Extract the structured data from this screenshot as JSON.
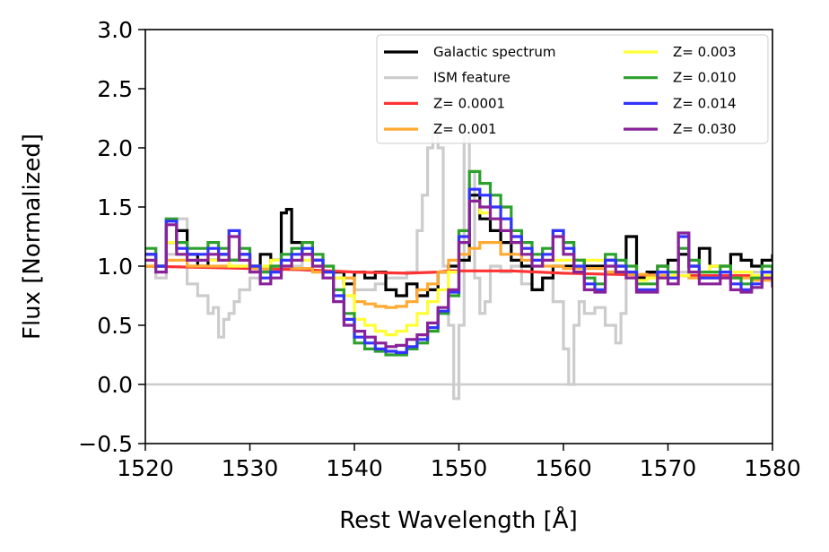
{
  "chart_data": {
    "type": "line",
    "xlabel": "Rest Wavelength [Å]",
    "ylabel": "Flux [Normalized]",
    "xlim": [
      1520,
      1580
    ],
    "ylim": [
      -0.5,
      3.0
    ],
    "xticks": [
      1520,
      1530,
      1540,
      1550,
      1560,
      1570,
      1580
    ],
    "xtick_labels": [
      "1520",
      "1530",
      "1540",
      "1550",
      "1560",
      "1570",
      "1580"
    ],
    "yticks": [
      -0.5,
      0.0,
      0.5,
      1.0,
      1.5,
      2.0,
      2.5,
      3.0
    ],
    "ytick_labels": [
      "−0.5",
      "0.0",
      "0.5",
      "1.0",
      "1.5",
      "2.0",
      "2.5",
      "3.0"
    ],
    "reference_line": {
      "y": 0.0,
      "color": "#cccccc"
    },
    "legend_position": "top-right",
    "series": [
      {
        "name": "ISM feature",
        "color": "#cccccc",
        "step": true,
        "legend_col": 0,
        "legend_row": 1,
        "x": [
          1520,
          1521,
          1522,
          1523,
          1524,
          1525,
          1526,
          1526.5,
          1527,
          1527.5,
          1528,
          1528.5,
          1529,
          1530,
          1531,
          1532,
          1533,
          1534,
          1535,
          1536,
          1537,
          1538,
          1539,
          1540,
          1541,
          1542,
          1543,
          1544,
          1545,
          1546,
          1546.5,
          1547,
          1547.5,
          1548,
          1548.5,
          1549,
          1549.5,
          1550,
          1550.5,
          1551,
          1551.5,
          1552,
          1552.5,
          1553,
          1554,
          1555,
          1556,
          1557,
          1558,
          1559,
          1560,
          1560.5,
          1561,
          1561.5,
          1562,
          1563,
          1564,
          1565,
          1565.5,
          1566,
          1567,
          1568,
          1570,
          1572,
          1574,
          1576,
          1578,
          1580
        ],
        "y": [
          1.0,
          0.9,
          1.1,
          1.4,
          0.85,
          0.75,
          0.6,
          0.65,
          0.4,
          0.55,
          0.6,
          0.7,
          0.8,
          0.9,
          1.0,
          1.05,
          1.0,
          1.0,
          1.05,
          1.0,
          1.0,
          0.9,
          0.85,
          0.8,
          0.8,
          0.85,
          0.9,
          0.9,
          0.95,
          1.3,
          1.6,
          2.0,
          2.2,
          2.0,
          1.0,
          0.5,
          -0.12,
          0.5,
          2.1,
          1.8,
          0.9,
          0.6,
          0.7,
          1.0,
          0.95,
          1.0,
          0.85,
          0.8,
          0.9,
          0.7,
          0.3,
          0.0,
          0.5,
          0.7,
          0.6,
          0.65,
          0.5,
          0.35,
          0.6,
          0.95,
          0.9,
          0.95,
          0.95,
          0.95,
          0.95,
          0.95,
          0.95,
          0.95
        ]
      },
      {
        "name": "Galactic spectrum",
        "color": "#000000",
        "step": true,
        "legend_col": 0,
        "legend_row": 0,
        "x": [
          1520,
          1521,
          1522,
          1523,
          1524,
          1525,
          1526,
          1527,
          1528,
          1529,
          1530,
          1531,
          1532,
          1533,
          1533.5,
          1534,
          1535,
          1536,
          1537,
          1538,
          1539,
          1540,
          1541,
          1542,
          1543,
          1544,
          1545,
          1546,
          1547,
          1548,
          1549,
          1550,
          1551,
          1552,
          1553,
          1554,
          1555,
          1556,
          1557,
          1558,
          1559,
          1560,
          1561,
          1562,
          1563,
          1564,
          1565,
          1566,
          1567,
          1568,
          1569,
          1570,
          1571,
          1572,
          1573,
          1574,
          1575,
          1576,
          1577,
          1578,
          1579,
          1580
        ],
        "y": [
          1.1,
          1.0,
          1.2,
          1.3,
          1.1,
          1.0,
          1.05,
          1.1,
          1.05,
          1.1,
          1.0,
          1.1,
          1.05,
          1.45,
          1.48,
          1.2,
          1.1,
          1.05,
          0.95,
          0.95,
          0.85,
          0.95,
          0.9,
          0.95,
          0.8,
          0.75,
          0.85,
          0.75,
          0.8,
          0.95,
          1.0,
          1.05,
          1.6,
          1.4,
          1.3,
          1.2,
          1.05,
          1.0,
          0.8,
          0.9,
          1.0,
          1.0,
          1.05,
          1.0,
          1.0,
          1.05,
          1.0,
          1.25,
          0.9,
          0.95,
          1.0,
          1.05,
          1.1,
          1.0,
          1.15,
          1.0,
          1.0,
          1.1,
          1.05,
          1.0,
          1.05,
          1.1
        ]
      },
      {
        "name": "Z= 0.0001",
        "color": "#ff3333",
        "step": false,
        "legend_col": 0,
        "legend_row": 2,
        "x": [
          1520,
          1525,
          1530,
          1535,
          1540,
          1545,
          1548,
          1549,
          1550,
          1555,
          1560,
          1565,
          1570,
          1575,
          1580
        ],
        "y": [
          1.0,
          0.99,
          0.98,
          0.97,
          0.95,
          0.94,
          0.95,
          0.96,
          0.96,
          0.96,
          0.94,
          0.93,
          0.92,
          0.92,
          0.92
        ]
      },
      {
        "name": "Z= 0.001",
        "color": "#ffaa33",
        "step": true,
        "legend_col": 0,
        "legend_row": 3,
        "x": [
          1520,
          1522,
          1524,
          1526,
          1528,
          1530,
          1532,
          1534,
          1536,
          1538,
          1540,
          1541,
          1542,
          1543,
          1544,
          1545,
          1546,
          1547,
          1548,
          1549,
          1550,
          1551,
          1552,
          1553,
          1554,
          1556,
          1558,
          1560,
          1562,
          1564,
          1566,
          1568,
          1570,
          1572,
          1574,
          1576,
          1578,
          1580
        ],
        "y": [
          1.0,
          1.05,
          1.0,
          1.0,
          1.0,
          0.98,
          1.0,
          0.98,
          0.95,
          0.9,
          0.7,
          0.68,
          0.66,
          0.65,
          0.66,
          0.7,
          0.8,
          0.85,
          0.95,
          1.05,
          1.1,
          1.15,
          1.2,
          1.2,
          1.1,
          1.05,
          1.0,
          0.98,
          0.98,
          0.95,
          0.93,
          0.92,
          0.92,
          0.9,
          0.9,
          0.9,
          0.88,
          0.88
        ]
      },
      {
        "name": "Z= 0.003",
        "color": "#ffff33",
        "step": true,
        "legend_col": 1,
        "legend_row": 0,
        "x": [
          1520,
          1521,
          1522,
          1523,
          1524,
          1526,
          1528,
          1530,
          1532,
          1534,
          1536,
          1537,
          1538,
          1539,
          1540,
          1541,
          1542,
          1543,
          1544,
          1545,
          1546,
          1547,
          1548,
          1549,
          1550,
          1551,
          1552,
          1553,
          1554,
          1555,
          1556,
          1557,
          1558,
          1560,
          1562,
          1564,
          1566,
          1567,
          1568,
          1570,
          1572,
          1574,
          1576,
          1578,
          1580
        ],
        "y": [
          1.05,
          1.0,
          1.2,
          1.1,
          1.05,
          1.05,
          1.0,
          1.0,
          1.05,
          1.05,
          1.0,
          0.95,
          0.9,
          0.75,
          0.55,
          0.5,
          0.45,
          0.42,
          0.45,
          0.5,
          0.6,
          0.7,
          0.8,
          0.95,
          1.3,
          1.55,
          1.45,
          1.4,
          1.3,
          1.2,
          1.15,
          1.1,
          1.05,
          1.05,
          1.05,
          1.0,
          1.0,
          0.88,
          0.9,
          0.92,
          0.95,
          1.0,
          0.95,
          0.92,
          0.92
        ]
      },
      {
        "name": "Z= 0.010",
        "color": "#2ca02c",
        "step": true,
        "legend_col": 1,
        "legend_row": 1,
        "x": [
          1520,
          1521,
          1522,
          1523,
          1524,
          1525,
          1526,
          1527,
          1528,
          1529,
          1530,
          1531,
          1532,
          1533,
          1534,
          1535,
          1536,
          1537,
          1538,
          1539,
          1540,
          1541,
          1542,
          1543,
          1544,
          1545,
          1546,
          1547,
          1548,
          1549,
          1550,
          1551,
          1552,
          1553,
          1554,
          1555,
          1556,
          1557,
          1558,
          1559,
          1560,
          1561,
          1562,
          1563,
          1564,
          1565,
          1566,
          1567,
          1568,
          1569,
          1570,
          1571,
          1572,
          1573,
          1574,
          1575,
          1576,
          1577,
          1578,
          1579,
          1580
        ],
        "y": [
          1.15,
          1.0,
          1.4,
          1.2,
          1.15,
          1.15,
          1.2,
          1.15,
          1.05,
          1.15,
          1.0,
          0.95,
          1.0,
          1.1,
          1.15,
          1.2,
          1.1,
          1.0,
          0.8,
          0.6,
          0.35,
          0.3,
          0.28,
          0.25,
          0.25,
          0.3,
          0.35,
          0.45,
          0.6,
          0.75,
          1.3,
          1.8,
          1.7,
          1.6,
          1.5,
          1.3,
          1.2,
          1.1,
          1.15,
          1.3,
          1.2,
          1.05,
          0.9,
          0.85,
          1.1,
          1.05,
          1.0,
          0.85,
          0.85,
          1.0,
          0.95,
          1.15,
          1.05,
          0.95,
          0.95,
          1.0,
          0.9,
          0.85,
          0.9,
          1.0,
          0.9
        ]
      },
      {
        "name": "Z= 0.014",
        "color": "#3333ff",
        "step": true,
        "legend_col": 1,
        "legend_row": 2,
        "x": [
          1520,
          1521,
          1522,
          1523,
          1524,
          1525,
          1526,
          1527,
          1528,
          1529,
          1530,
          1531,
          1532,
          1533,
          1534,
          1535,
          1536,
          1537,
          1538,
          1539,
          1540,
          1541,
          1542,
          1543,
          1544,
          1545,
          1546,
          1547,
          1548,
          1549,
          1550,
          1551,
          1552,
          1553,
          1554,
          1555,
          1556,
          1557,
          1558,
          1559,
          1560,
          1561,
          1562,
          1563,
          1564,
          1565,
          1566,
          1567,
          1568,
          1569,
          1570,
          1571,
          1572,
          1573,
          1574,
          1575,
          1576,
          1577,
          1578,
          1579,
          1580
        ],
        "y": [
          1.1,
          1.0,
          1.38,
          1.15,
          1.1,
          1.1,
          1.15,
          1.1,
          1.3,
          1.1,
          1.0,
          0.9,
          0.95,
          1.05,
          1.1,
          1.15,
          1.05,
          0.95,
          0.75,
          0.55,
          0.4,
          0.35,
          0.3,
          0.28,
          0.27,
          0.32,
          0.38,
          0.48,
          0.62,
          0.78,
          1.25,
          1.65,
          1.6,
          1.5,
          1.4,
          1.25,
          1.15,
          1.05,
          1.1,
          1.3,
          1.15,
          1.0,
          0.85,
          0.8,
          1.05,
          1.0,
          0.95,
          0.8,
          0.8,
          0.95,
          0.9,
          1.25,
          1.0,
          0.9,
          0.9,
          0.95,
          0.85,
          0.8,
          0.85,
          0.95,
          0.85
        ]
      },
      {
        "name": "Z= 0.030",
        "color": "#882299",
        "step": true,
        "legend_col": 1,
        "legend_row": 3,
        "x": [
          1520,
          1521,
          1522,
          1523,
          1524,
          1525,
          1526,
          1527,
          1528,
          1529,
          1530,
          1531,
          1532,
          1533,
          1534,
          1535,
          1536,
          1537,
          1538,
          1539,
          1540,
          1541,
          1542,
          1543,
          1544,
          1545,
          1546,
          1547,
          1548,
          1549,
          1550,
          1551,
          1552,
          1553,
          1554,
          1555,
          1556,
          1557,
          1558,
          1559,
          1560,
          1561,
          1562,
          1563,
          1564,
          1565,
          1566,
          1567,
          1568,
          1569,
          1570,
          1571,
          1572,
          1573,
          1574,
          1575,
          1576,
          1577,
          1578,
          1579,
          1580
        ],
        "y": [
          1.05,
          0.95,
          1.35,
          1.1,
          1.05,
          1.05,
          1.1,
          1.05,
          1.25,
          1.05,
          0.95,
          0.85,
          0.9,
          1.0,
          1.05,
          1.1,
          1.0,
          0.9,
          0.7,
          0.5,
          0.45,
          0.4,
          0.35,
          0.32,
          0.33,
          0.38,
          0.42,
          0.52,
          0.65,
          0.8,
          1.2,
          1.55,
          1.5,
          1.4,
          1.3,
          1.2,
          1.1,
          1.0,
          1.05,
          1.25,
          1.1,
          0.95,
          0.8,
          0.78,
          1.0,
          0.95,
          0.9,
          0.78,
          0.78,
          0.9,
          0.85,
          1.28,
          0.95,
          0.85,
          0.85,
          0.9,
          0.8,
          0.78,
          0.82,
          0.9,
          0.82
        ]
      }
    ]
  }
}
